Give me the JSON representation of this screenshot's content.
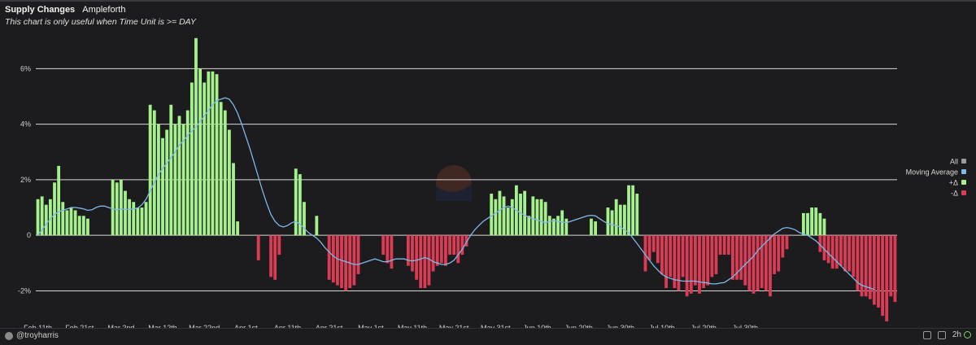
{
  "header": {
    "title": "Supply Changes",
    "subtitle": "Ampleforth",
    "note": "This chart is only useful when Time Unit is >= DAY"
  },
  "footer": {
    "author": "@troyharris",
    "refresh": "2h"
  },
  "colors": {
    "positive": "#a5f28d",
    "negative": "#d93c54",
    "moving_average": "#7fb8e6",
    "all": "#9a9a9a",
    "grid": "#d8d8d8",
    "background": "#1c1b1d"
  },
  "chart_data": {
    "type": "bar",
    "title": "Supply Changes",
    "ylim": [
      -3.1,
      7.3
    ],
    "y_ticks": [
      -2,
      0,
      2,
      4,
      6
    ],
    "y_tick_labels": [
      "-2%",
      "0",
      "2%",
      "4%",
      "6%"
    ],
    "x_start_date": "Feb 11th",
    "x_tick_labels": [
      "Feb 11th",
      "Feb 21st",
      "Mar 2nd",
      "Mar 12th",
      "Mar 22nd",
      "Apr 1st",
      "Apr 11th",
      "Apr 21st",
      "May 1st",
      "May 11th",
      "May 21st",
      "May 31st",
      "Jun 10th",
      "Jun 20th",
      "Jun 30th",
      "Jul 10th",
      "Jul 20th",
      "Jul 30th"
    ],
    "legend": {
      "placement": "right",
      "items": [
        {
          "label": "All",
          "color": "#9a9a9a"
        },
        {
          "label": "Moving Average",
          "color": "#7fb8e6"
        },
        {
          "label": "+Δ",
          "color": "#a5f28d"
        },
        {
          "label": "-Δ",
          "color": "#d93c54"
        }
      ]
    },
    "series": [
      {
        "name": "+Δ",
        "values": [
          1.3,
          1.4,
          1.1,
          1.3,
          1.9,
          2.5,
          1.2,
          0.9,
          1.0,
          0.9,
          0.7,
          0.7,
          0.6,
          0,
          0,
          0,
          0,
          0,
          2.0,
          1.9,
          2.0,
          1.6,
          1.3,
          1.2,
          1.0,
          1.0,
          1.2,
          4.7,
          4.5,
          4.0,
          3.5,
          3.8,
          4.7,
          4.0,
          4.3,
          4.0,
          4.5,
          5.5,
          7.1,
          6.0,
          5.5,
          5.9,
          5.9,
          5.8,
          4.8,
          4.5,
          3.8,
          2.6,
          0.5,
          0,
          0,
          0,
          0,
          0,
          0,
          0,
          0,
          0,
          0,
          0,
          0,
          0,
          2.4,
          2.2,
          1.2,
          0,
          0,
          0.7,
          0,
          0,
          0,
          0,
          0,
          0,
          0,
          0,
          0,
          0,
          0,
          0,
          0,
          0,
          0,
          0,
          0,
          0,
          0,
          0,
          0,
          0,
          0,
          0,
          0,
          0,
          0,
          0,
          0,
          0,
          0,
          0,
          0,
          0,
          0,
          0,
          0,
          0,
          0,
          0,
          0,
          1.5,
          1.3,
          1.6,
          1.4,
          1.0,
          1.3,
          1.8,
          1.5,
          1.6,
          0.7,
          1.4,
          1.3,
          1.3,
          1.2,
          0.7,
          0.6,
          0.7,
          0.9,
          0.6,
          0,
          0,
          0,
          0,
          0,
          0.6,
          0.5,
          0,
          0,
          1.0,
          0.9,
          1.3,
          1.1,
          1.1,
          1.8,
          1.8,
          1.5,
          0,
          0,
          0,
          0,
          0,
          0,
          0,
          0,
          0,
          0,
          0,
          0,
          0,
          0,
          0,
          0,
          0,
          0,
          0,
          0,
          0,
          0,
          0,
          0,
          0,
          0,
          0,
          0,
          0,
          0,
          0,
          0,
          0,
          0,
          0,
          0,
          0,
          0,
          0,
          0.8,
          0.8,
          1.0,
          1.0,
          0.8,
          0.6,
          0,
          0,
          0,
          0,
          0,
          0,
          0,
          0,
          0,
          0,
          0,
          0,
          0,
          0,
          0,
          0,
          0
        ]
      },
      {
        "name": "-Δ",
        "values": [
          0,
          0,
          0,
          0,
          0,
          0,
          0,
          0,
          0,
          0,
          0,
          0,
          0,
          0,
          0,
          0,
          0,
          0,
          0,
          0,
          0,
          0,
          0,
          0,
          0,
          0,
          0,
          0,
          0,
          0,
          0,
          0,
          0,
          0,
          0,
          0,
          0,
          0,
          0,
          0,
          0,
          0,
          0,
          0,
          0,
          0,
          0,
          0,
          0,
          0,
          0,
          0,
          0,
          -0.9,
          0,
          0,
          -1.5,
          -1.6,
          -0.7,
          0,
          0,
          0,
          0,
          0,
          0,
          0,
          0,
          0,
          0,
          0,
          -1.6,
          -1.7,
          -1.8,
          -1.9,
          -2.0,
          -1.9,
          -1.8,
          -1.4,
          0,
          0,
          0,
          0,
          0,
          -0.7,
          -1.0,
          -1.2,
          0,
          0,
          0,
          -1.1,
          -1.3,
          -1.6,
          -1.9,
          -1.9,
          -1.8,
          -1.3,
          -1.1,
          -1.0,
          -1.1,
          -0.7,
          -0.7,
          -1.0,
          -0.7,
          -0.4,
          0,
          0,
          0,
          0,
          0,
          0,
          0,
          0,
          0,
          0,
          0,
          0,
          0,
          0,
          0,
          0,
          0,
          0,
          0,
          0,
          0,
          0,
          0,
          0,
          0,
          0,
          0,
          0,
          0,
          0,
          0,
          0,
          0,
          0,
          0,
          0,
          0,
          0,
          0,
          0,
          0,
          0,
          -1.3,
          -0.9,
          -0.6,
          -1.0,
          -1.4,
          -1.9,
          -1.5,
          -1.9,
          -2.0,
          -1.5,
          -2.2,
          -2.1,
          -1.8,
          -2.1,
          -1.9,
          -1.8,
          -1.5,
          -1.4,
          -0.7,
          -0.7,
          -0.7,
          -1.6,
          -1.6,
          -1.6,
          -1.8,
          -2.0,
          -2.1,
          -2.0,
          -1.9,
          -2.0,
          -2.2,
          -1.4,
          -1.3,
          -0.8,
          -0.5,
          0,
          0,
          0,
          0,
          0,
          0,
          0,
          -0.6,
          -0.9,
          -1.0,
          -1.2,
          -1.2,
          -1.1,
          -1.3,
          -1.3,
          -1.5,
          -2.0,
          -2.2,
          -2.2,
          -2.3,
          -2.5,
          -2.6,
          -2.9,
          -3.1,
          -2.2,
          -2.4
        ]
      },
      {
        "name": "Moving Average",
        "values": [
          0.0,
          0.2,
          0.4,
          0.6,
          0.75,
          0.85,
          0.9,
          0.95,
          1.0,
          1.0,
          0.98,
          0.95,
          0.9,
          0.92,
          1.0,
          1.05,
          1.05,
          1.0,
          0.95,
          0.92,
          0.95,
          0.93,
          0.93,
          0.95,
          0.98,
          1.1,
          1.3,
          1.6,
          1.9,
          2.2,
          2.4,
          2.6,
          2.8,
          3.0,
          3.25,
          3.4,
          3.6,
          3.75,
          3.9,
          4.1,
          4.3,
          4.5,
          4.7,
          4.85,
          4.9,
          4.95,
          4.9,
          4.7,
          4.4,
          4.0,
          3.55,
          3.1,
          2.6,
          2.1,
          1.6,
          1.15,
          0.75,
          0.5,
          0.35,
          0.3,
          0.35,
          0.45,
          0.5,
          0.4,
          0.25,
          0.1,
          0.0,
          -0.1,
          -0.25,
          -0.45,
          -0.6,
          -0.75,
          -0.85,
          -0.9,
          -0.95,
          -1.0,
          -1.05,
          -1.05,
          -1.0,
          -0.95,
          -0.9,
          -0.85,
          -0.9,
          -0.95,
          -0.95,
          -0.9,
          -0.85,
          -0.85,
          -0.85,
          -0.9,
          -0.92,
          -0.9,
          -0.85,
          -0.8,
          -0.85,
          -0.95,
          -1.0,
          -1.05,
          -1.05,
          -1.0,
          -0.9,
          -0.7,
          -0.5,
          -0.25,
          0.0,
          0.2,
          0.35,
          0.5,
          0.6,
          0.7,
          0.8,
          0.9,
          1.0,
          1.05,
          1.0,
          0.9,
          0.8,
          0.72,
          0.65,
          0.6,
          0.55,
          0.5,
          0.45,
          0.5,
          0.52,
          0.5,
          0.48,
          0.45,
          0.5,
          0.55,
          0.6,
          0.65,
          0.7,
          0.72,
          0.7,
          0.6,
          0.5,
          0.42,
          0.38,
          0.35,
          0.3,
          0.2,
          0.1,
          -0.1,
          -0.3,
          -0.5,
          -0.7,
          -0.9,
          -1.1,
          -1.25,
          -1.4,
          -1.5,
          -1.55,
          -1.6,
          -1.62,
          -1.65,
          -1.65,
          -1.65,
          -1.65,
          -1.68,
          -1.7,
          -1.72,
          -1.75,
          -1.75,
          -1.72,
          -1.7,
          -1.6,
          -1.5,
          -1.35,
          -1.2,
          -1.05,
          -0.9,
          -0.75,
          -0.55,
          -0.4,
          -0.25,
          -0.1,
          0.05,
          0.15,
          0.25,
          0.28,
          0.25,
          0.2,
          0.1,
          0.05,
          0.0,
          -0.1,
          -0.2,
          -0.35,
          -0.5,
          -0.65,
          -0.8,
          -0.95,
          -1.1,
          -1.25,
          -1.4,
          -1.55,
          -1.7,
          -1.8,
          -1.85,
          -1.9,
          -1.95
        ]
      }
    ]
  }
}
